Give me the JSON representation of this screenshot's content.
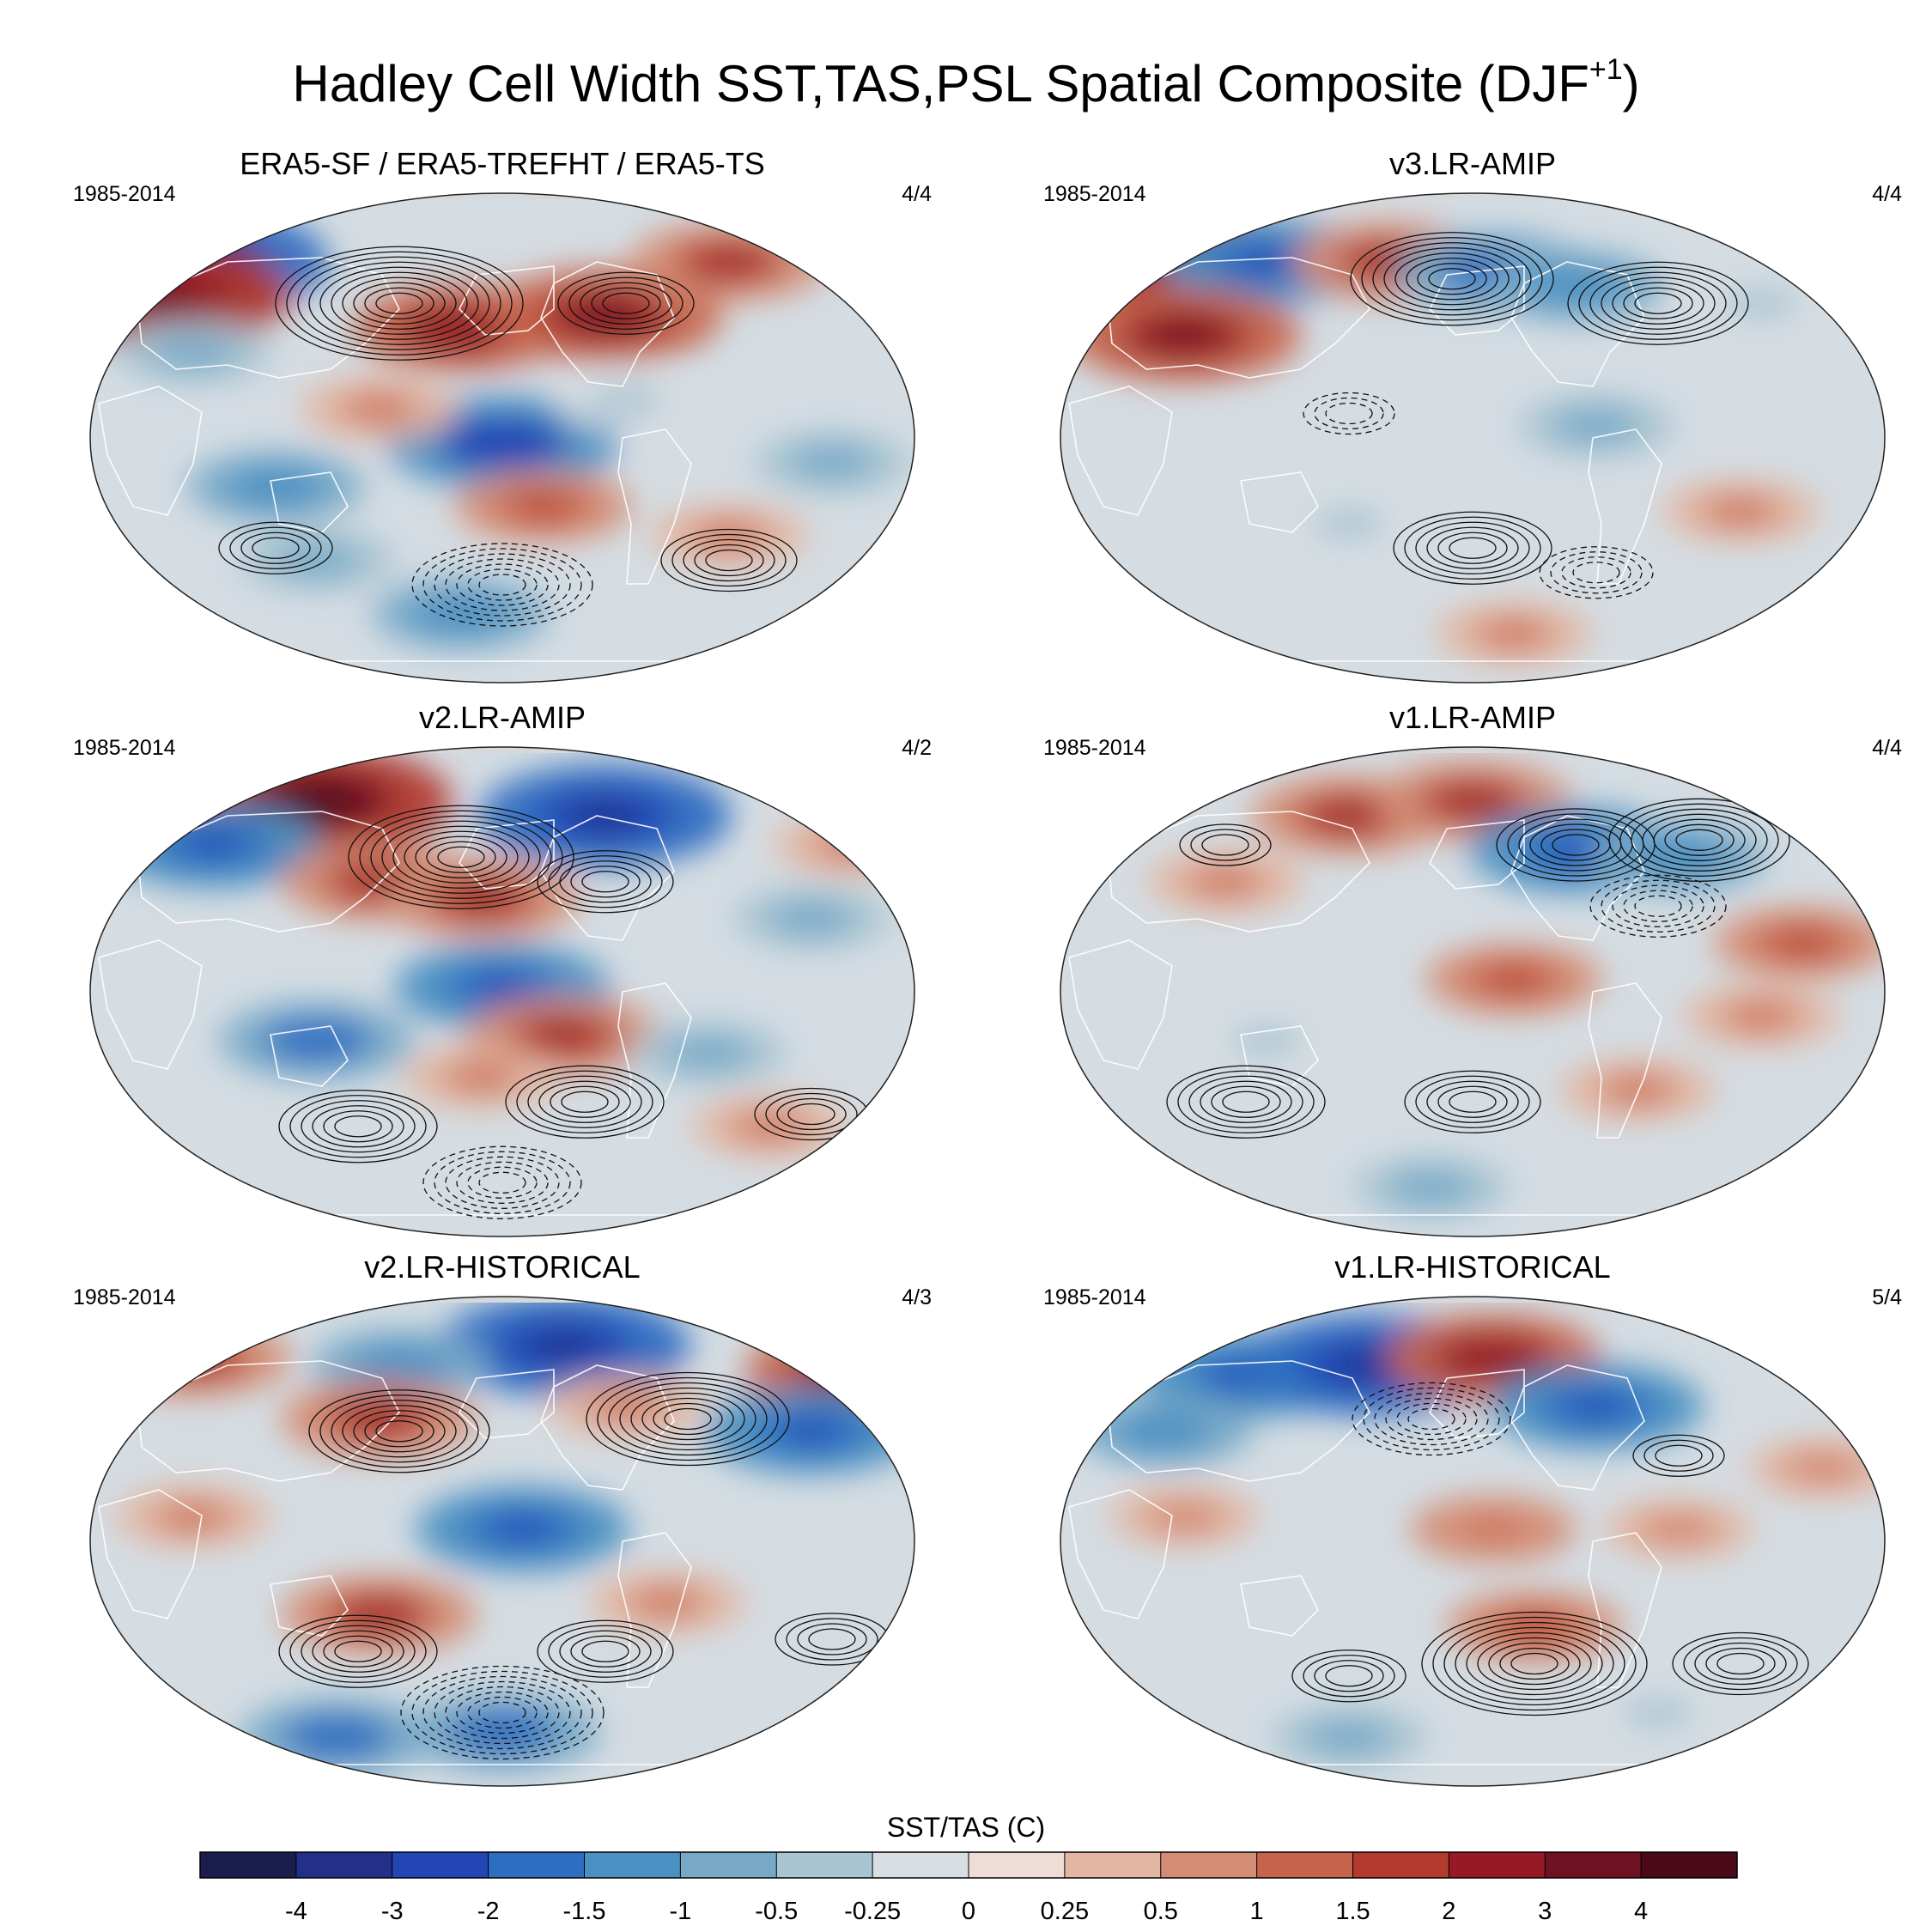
{
  "figure": {
    "title_main": "Hadley Cell Width SST,TAS,PSL Spatial Composite (DJF",
    "title_sup": "+1",
    "title_close": ")"
  },
  "panels": [
    {
      "title": "ERA5-SF / ERA5-TREFHT / ERA5-TS",
      "period": "1985-2014",
      "count": "4/4",
      "blobs": [
        [
          -0.75,
          0.72,
          -4
        ],
        [
          -0.82,
          0.58,
          3.5
        ],
        [
          -0.1,
          0.45,
          2.5
        ],
        [
          0.25,
          0.5,
          3
        ],
        [
          0.55,
          0.72,
          2
        ],
        [
          -0.75,
          0.35,
          -1
        ],
        [
          0.0,
          -0.02,
          -3
        ],
        [
          -0.3,
          0.12,
          1
        ],
        [
          0.1,
          -0.28,
          1.5
        ],
        [
          0.55,
          -0.4,
          1
        ],
        [
          -0.45,
          -0.5,
          -1
        ],
        [
          -0.1,
          -0.72,
          -1.5
        ],
        [
          0.8,
          -0.1,
          -1
        ],
        [
          -0.55,
          -0.2,
          -1.5
        ],
        [
          0.3,
          0.15,
          -0.5
        ]
      ],
      "pressure": [
        [
          -0.25,
          0.55,
          1,
          10
        ],
        [
          0.3,
          0.55,
          1,
          5
        ],
        [
          0.0,
          -0.6,
          -1,
          7
        ],
        [
          0.55,
          -0.5,
          1,
          5
        ],
        [
          -0.55,
          -0.45,
          1,
          4
        ]
      ]
    },
    {
      "title": "v3.LR-AMIP",
      "period": "1985-2014",
      "count": "4/4",
      "blobs": [
        [
          -0.75,
          0.75,
          3.5
        ],
        [
          -0.5,
          0.72,
          -2.5
        ],
        [
          -0.2,
          0.72,
          2
        ],
        [
          0.05,
          0.68,
          -2
        ],
        [
          0.25,
          0.62,
          -1.5
        ],
        [
          -0.7,
          0.42,
          3
        ],
        [
          0.3,
          0.05,
          -1
        ],
        [
          0.1,
          -0.8,
          1
        ],
        [
          0.65,
          -0.3,
          1
        ],
        [
          -0.3,
          -0.35,
          -0.5
        ],
        [
          0.7,
          0.55,
          -0.5
        ]
      ],
      "pressure": [
        [
          -0.05,
          0.65,
          1,
          8
        ],
        [
          0.45,
          0.55,
          1,
          7
        ],
        [
          0.0,
          -0.45,
          1,
          6
        ],
        [
          -0.3,
          0.1,
          -1,
          3
        ],
        [
          0.3,
          -0.55,
          -1,
          4
        ]
      ]
    },
    {
      "title": "v2.LR-AMIP",
      "period": "1985-2014",
      "count": "4/2",
      "blobs": [
        [
          -0.45,
          0.78,
          4
        ],
        [
          -0.7,
          0.6,
          -2.5
        ],
        [
          0.25,
          0.72,
          -3.5
        ],
        [
          -0.3,
          0.45,
          2
        ],
        [
          -0.05,
          0.38,
          2
        ],
        [
          0.0,
          0.02,
          -2.5
        ],
        [
          0.15,
          -0.18,
          2
        ],
        [
          -0.45,
          -0.2,
          -2
        ],
        [
          0.5,
          -0.25,
          -1
        ],
        [
          0.65,
          -0.55,
          1
        ],
        [
          -0.05,
          -0.35,
          1
        ],
        [
          0.75,
          0.3,
          -1
        ],
        [
          0.85,
          0.6,
          1
        ]
      ],
      "pressure": [
        [
          -0.1,
          0.55,
          1,
          9
        ],
        [
          0.25,
          0.45,
          1,
          5
        ],
        [
          -0.35,
          -0.55,
          1,
          6
        ],
        [
          0.2,
          -0.45,
          1,
          6
        ],
        [
          0.0,
          -0.78,
          -1,
          6
        ],
        [
          0.75,
          -0.5,
          1,
          4
        ]
      ]
    },
    {
      "title": "v1.LR-AMIP",
      "period": "1985-2014",
      "count": "4/4",
      "blobs": [
        [
          -0.3,
          0.72,
          2
        ],
        [
          0.0,
          0.78,
          2
        ],
        [
          0.25,
          0.58,
          -2.5
        ],
        [
          0.5,
          0.55,
          -1.5
        ],
        [
          -0.6,
          0.45,
          1
        ],
        [
          0.1,
          0.05,
          1.5
        ],
        [
          0.7,
          -0.1,
          1
        ],
        [
          0.8,
          0.2,
          1.5
        ],
        [
          -0.1,
          -0.8,
          -1
        ],
        [
          0.4,
          -0.4,
          1
        ],
        [
          -0.5,
          -0.2,
          -0.5
        ]
      ],
      "pressure": [
        [
          0.25,
          0.6,
          1,
          6
        ],
        [
          0.55,
          0.62,
          1,
          7
        ],
        [
          -0.55,
          -0.45,
          1,
          6
        ],
        [
          0.0,
          -0.45,
          1,
          5
        ],
        [
          0.45,
          0.35,
          -1,
          5
        ],
        [
          -0.6,
          0.6,
          1,
          3
        ]
      ]
    },
    {
      "title": "v2.LR-HISTORICAL",
      "period": "1985-2014",
      "count": "4/3",
      "blobs": [
        [
          0.15,
          0.8,
          -3.5
        ],
        [
          -0.25,
          0.72,
          -1.5
        ],
        [
          -0.75,
          0.75,
          2
        ],
        [
          0.85,
          0.7,
          2.5
        ],
        [
          0.75,
          0.45,
          -2.5
        ],
        [
          -0.3,
          0.5,
          2
        ],
        [
          0.05,
          0.05,
          -2.5
        ],
        [
          -0.3,
          -0.3,
          2
        ],
        [
          0.0,
          -0.78,
          -2
        ],
        [
          -0.4,
          -0.8,
          -2
        ],
        [
          0.4,
          -0.25,
          1
        ],
        [
          -0.75,
          0.1,
          1
        ],
        [
          0.3,
          0.55,
          1
        ]
      ],
      "pressure": [
        [
          -0.25,
          0.45,
          1,
          7
        ],
        [
          0.45,
          0.5,
          1,
          8
        ],
        [
          -0.35,
          -0.45,
          1,
          6
        ],
        [
          0.25,
          -0.45,
          1,
          5
        ],
        [
          0.0,
          -0.7,
          -1,
          8
        ],
        [
          0.8,
          -0.4,
          1,
          4
        ]
      ]
    },
    {
      "title": "v1.LR-HISTORICAL",
      "period": "1985-2014",
      "count": "5/4",
      "blobs": [
        [
          -0.55,
          0.68,
          -2.5
        ],
        [
          -0.25,
          0.72,
          -3.5
        ],
        [
          0.05,
          0.75,
          2.5
        ],
        [
          0.3,
          0.55,
          -2.5
        ],
        [
          -0.75,
          0.45,
          -1.5
        ],
        [
          0.05,
          0.05,
          1.2
        ],
        [
          0.5,
          0.05,
          0.8
        ],
        [
          -0.7,
          0.1,
          0.8
        ],
        [
          0.15,
          -0.35,
          1.5
        ],
        [
          -0.3,
          -0.8,
          -1
        ],
        [
          0.45,
          -0.7,
          -0.5
        ],
        [
          0.85,
          0.3,
          0.8
        ]
      ],
      "pressure": [
        [
          0.15,
          -0.5,
          1,
          9
        ],
        [
          -0.3,
          -0.55,
          1,
          4
        ],
        [
          0.65,
          -0.5,
          1,
          5
        ],
        [
          -0.1,
          0.5,
          -1,
          6
        ],
        [
          0.5,
          0.35,
          1,
          3
        ]
      ]
    }
  ],
  "colorbar": {
    "label": "SST/TAS (C)",
    "levels": [
      -5,
      -4,
      -3,
      -2,
      -1.5,
      -1,
      -0.5,
      -0.25,
      0,
      0.25,
      0.5,
      1,
      1.5,
      2,
      3,
      4,
      5
    ],
    "tick_labels": [
      "-4",
      "-3",
      "-2",
      "-1.5",
      "-1",
      "-0.5",
      "-0.25",
      "0",
      "0.25",
      "0.5",
      "1",
      "1.5",
      "2",
      "3",
      "4"
    ],
    "colors": [
      "#1b1e4d",
      "#22308a",
      "#2247b5",
      "#2e6ec1",
      "#4b90c2",
      "#78aac8",
      "#a9c4d2",
      "#d8dee2",
      "#efdcd6",
      "#e3b6a3",
      "#d48c74",
      "#c6644c",
      "#b23a2e",
      "#951a25",
      "#6e1121",
      "#4a0a17"
    ]
  },
  "map": {
    "ocean_base": "#d5dde3",
    "polar_cap": "#d5d9dc",
    "coast_color": "#ffffff"
  }
}
